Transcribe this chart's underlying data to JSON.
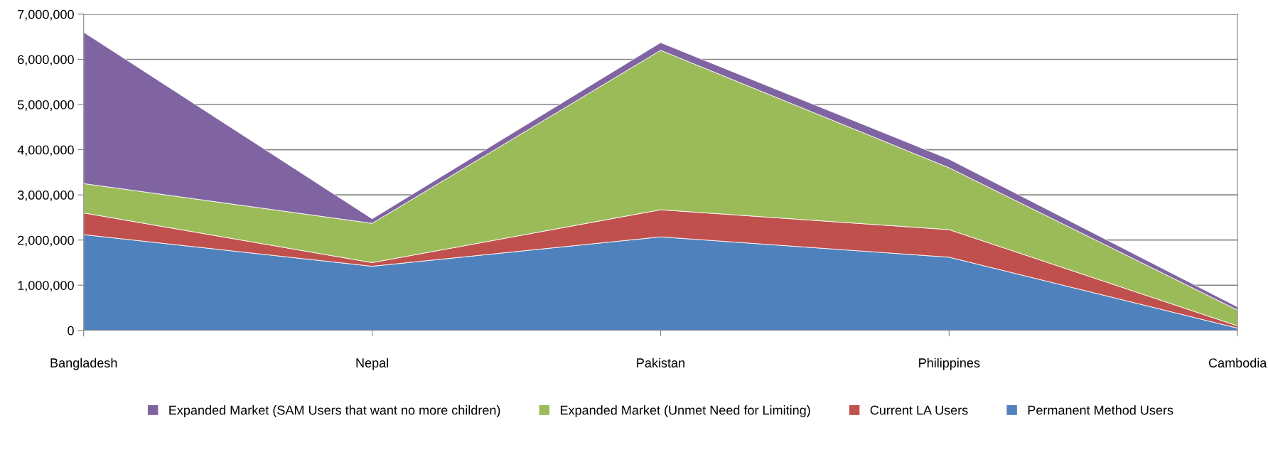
{
  "chart_data": {
    "type": "area",
    "stacked": true,
    "categories": [
      "Bangladesh",
      "Nepal",
      "Pakistan",
      "Philippines",
      "Cambodia"
    ],
    "series": [
      {
        "name": "Permanent Method Users",
        "color": "#4f81bd",
        "values": [
          2120000,
          1420000,
          2070000,
          1620000,
          50000
        ]
      },
      {
        "name": "Current LA Users",
        "color": "#c0504d",
        "values": [
          480000,
          80000,
          600000,
          610000,
          50000
        ]
      },
      {
        "name": "Expanded Market (Unmet Need for Limiting)",
        "color": "#9bbb59",
        "values": [
          650000,
          870000,
          3530000,
          1370000,
          350000
        ]
      },
      {
        "name": "Expanded Market (SAM Users that want no more children)",
        "color": "#8064a2",
        "values": [
          3350000,
          100000,
          170000,
          190000,
          70000
        ]
      }
    ],
    "ylim": [
      0,
      7000000
    ],
    "yticks": [
      {
        "value": 0,
        "label": "0"
      },
      {
        "value": 1000000,
        "label": "1,000,000"
      },
      {
        "value": 2000000,
        "label": "2,000,000"
      },
      {
        "value": 3000000,
        "label": "3,000,000"
      },
      {
        "value": 4000000,
        "label": "4,000,000"
      },
      {
        "value": 5000000,
        "label": "5,000,000"
      },
      {
        "value": 6000000,
        "label": "6,000,000"
      },
      {
        "value": 7000000,
        "label": "7,000,000"
      }
    ],
    "grid": "y",
    "legend": "bottom"
  }
}
